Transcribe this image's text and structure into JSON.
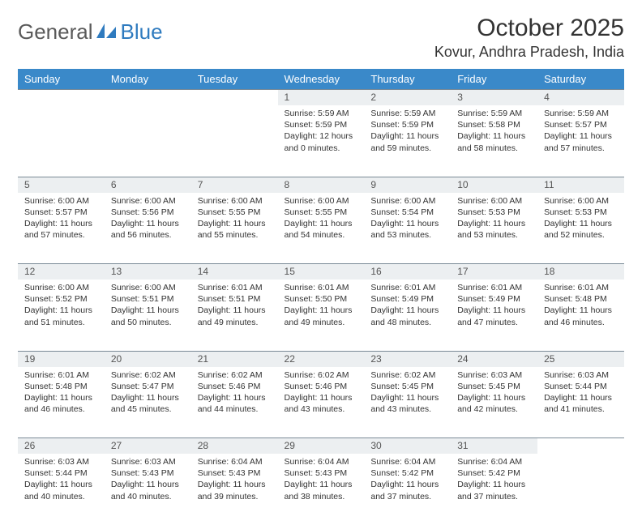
{
  "logo": {
    "part1": "General",
    "part2": "Blue"
  },
  "title": "October 2025",
  "location": "Kovur, Andhra Pradesh, India",
  "colors": {
    "header_bg": "#3a89c9",
    "header_text": "#ffffff",
    "daynum_bg": "#eceff1",
    "row_border": "#7a8a96",
    "body_text": "#333333",
    "logo_gray": "#5a5a5a",
    "logo_blue": "#2f7bbf"
  },
  "weekdays": [
    "Sunday",
    "Monday",
    "Tuesday",
    "Wednesday",
    "Thursday",
    "Friday",
    "Saturday"
  ],
  "weeks": [
    [
      null,
      null,
      null,
      {
        "day": "1",
        "sunrise": "Sunrise: 5:59 AM",
        "sunset": "Sunset: 5:59 PM",
        "daylight": "Daylight: 12 hours and 0 minutes."
      },
      {
        "day": "2",
        "sunrise": "Sunrise: 5:59 AM",
        "sunset": "Sunset: 5:59 PM",
        "daylight": "Daylight: 11 hours and 59 minutes."
      },
      {
        "day": "3",
        "sunrise": "Sunrise: 5:59 AM",
        "sunset": "Sunset: 5:58 PM",
        "daylight": "Daylight: 11 hours and 58 minutes."
      },
      {
        "day": "4",
        "sunrise": "Sunrise: 5:59 AM",
        "sunset": "Sunset: 5:57 PM",
        "daylight": "Daylight: 11 hours and 57 minutes."
      }
    ],
    [
      {
        "day": "5",
        "sunrise": "Sunrise: 6:00 AM",
        "sunset": "Sunset: 5:57 PM",
        "daylight": "Daylight: 11 hours and 57 minutes."
      },
      {
        "day": "6",
        "sunrise": "Sunrise: 6:00 AM",
        "sunset": "Sunset: 5:56 PM",
        "daylight": "Daylight: 11 hours and 56 minutes."
      },
      {
        "day": "7",
        "sunrise": "Sunrise: 6:00 AM",
        "sunset": "Sunset: 5:55 PM",
        "daylight": "Daylight: 11 hours and 55 minutes."
      },
      {
        "day": "8",
        "sunrise": "Sunrise: 6:00 AM",
        "sunset": "Sunset: 5:55 PM",
        "daylight": "Daylight: 11 hours and 54 minutes."
      },
      {
        "day": "9",
        "sunrise": "Sunrise: 6:00 AM",
        "sunset": "Sunset: 5:54 PM",
        "daylight": "Daylight: 11 hours and 53 minutes."
      },
      {
        "day": "10",
        "sunrise": "Sunrise: 6:00 AM",
        "sunset": "Sunset: 5:53 PM",
        "daylight": "Daylight: 11 hours and 53 minutes."
      },
      {
        "day": "11",
        "sunrise": "Sunrise: 6:00 AM",
        "sunset": "Sunset: 5:53 PM",
        "daylight": "Daylight: 11 hours and 52 minutes."
      }
    ],
    [
      {
        "day": "12",
        "sunrise": "Sunrise: 6:00 AM",
        "sunset": "Sunset: 5:52 PM",
        "daylight": "Daylight: 11 hours and 51 minutes."
      },
      {
        "day": "13",
        "sunrise": "Sunrise: 6:00 AM",
        "sunset": "Sunset: 5:51 PM",
        "daylight": "Daylight: 11 hours and 50 minutes."
      },
      {
        "day": "14",
        "sunrise": "Sunrise: 6:01 AM",
        "sunset": "Sunset: 5:51 PM",
        "daylight": "Daylight: 11 hours and 49 minutes."
      },
      {
        "day": "15",
        "sunrise": "Sunrise: 6:01 AM",
        "sunset": "Sunset: 5:50 PM",
        "daylight": "Daylight: 11 hours and 49 minutes."
      },
      {
        "day": "16",
        "sunrise": "Sunrise: 6:01 AM",
        "sunset": "Sunset: 5:49 PM",
        "daylight": "Daylight: 11 hours and 48 minutes."
      },
      {
        "day": "17",
        "sunrise": "Sunrise: 6:01 AM",
        "sunset": "Sunset: 5:49 PM",
        "daylight": "Daylight: 11 hours and 47 minutes."
      },
      {
        "day": "18",
        "sunrise": "Sunrise: 6:01 AM",
        "sunset": "Sunset: 5:48 PM",
        "daylight": "Daylight: 11 hours and 46 minutes."
      }
    ],
    [
      {
        "day": "19",
        "sunrise": "Sunrise: 6:01 AM",
        "sunset": "Sunset: 5:48 PM",
        "daylight": "Daylight: 11 hours and 46 minutes."
      },
      {
        "day": "20",
        "sunrise": "Sunrise: 6:02 AM",
        "sunset": "Sunset: 5:47 PM",
        "daylight": "Daylight: 11 hours and 45 minutes."
      },
      {
        "day": "21",
        "sunrise": "Sunrise: 6:02 AM",
        "sunset": "Sunset: 5:46 PM",
        "daylight": "Daylight: 11 hours and 44 minutes."
      },
      {
        "day": "22",
        "sunrise": "Sunrise: 6:02 AM",
        "sunset": "Sunset: 5:46 PM",
        "daylight": "Daylight: 11 hours and 43 minutes."
      },
      {
        "day": "23",
        "sunrise": "Sunrise: 6:02 AM",
        "sunset": "Sunset: 5:45 PM",
        "daylight": "Daylight: 11 hours and 43 minutes."
      },
      {
        "day": "24",
        "sunrise": "Sunrise: 6:03 AM",
        "sunset": "Sunset: 5:45 PM",
        "daylight": "Daylight: 11 hours and 42 minutes."
      },
      {
        "day": "25",
        "sunrise": "Sunrise: 6:03 AM",
        "sunset": "Sunset: 5:44 PM",
        "daylight": "Daylight: 11 hours and 41 minutes."
      }
    ],
    [
      {
        "day": "26",
        "sunrise": "Sunrise: 6:03 AM",
        "sunset": "Sunset: 5:44 PM",
        "daylight": "Daylight: 11 hours and 40 minutes."
      },
      {
        "day": "27",
        "sunrise": "Sunrise: 6:03 AM",
        "sunset": "Sunset: 5:43 PM",
        "daylight": "Daylight: 11 hours and 40 minutes."
      },
      {
        "day": "28",
        "sunrise": "Sunrise: 6:04 AM",
        "sunset": "Sunset: 5:43 PM",
        "daylight": "Daylight: 11 hours and 39 minutes."
      },
      {
        "day": "29",
        "sunrise": "Sunrise: 6:04 AM",
        "sunset": "Sunset: 5:43 PM",
        "daylight": "Daylight: 11 hours and 38 minutes."
      },
      {
        "day": "30",
        "sunrise": "Sunrise: 6:04 AM",
        "sunset": "Sunset: 5:42 PM",
        "daylight": "Daylight: 11 hours and 37 minutes."
      },
      {
        "day": "31",
        "sunrise": "Sunrise: 6:04 AM",
        "sunset": "Sunset: 5:42 PM",
        "daylight": "Daylight: 11 hours and 37 minutes."
      },
      null
    ]
  ]
}
